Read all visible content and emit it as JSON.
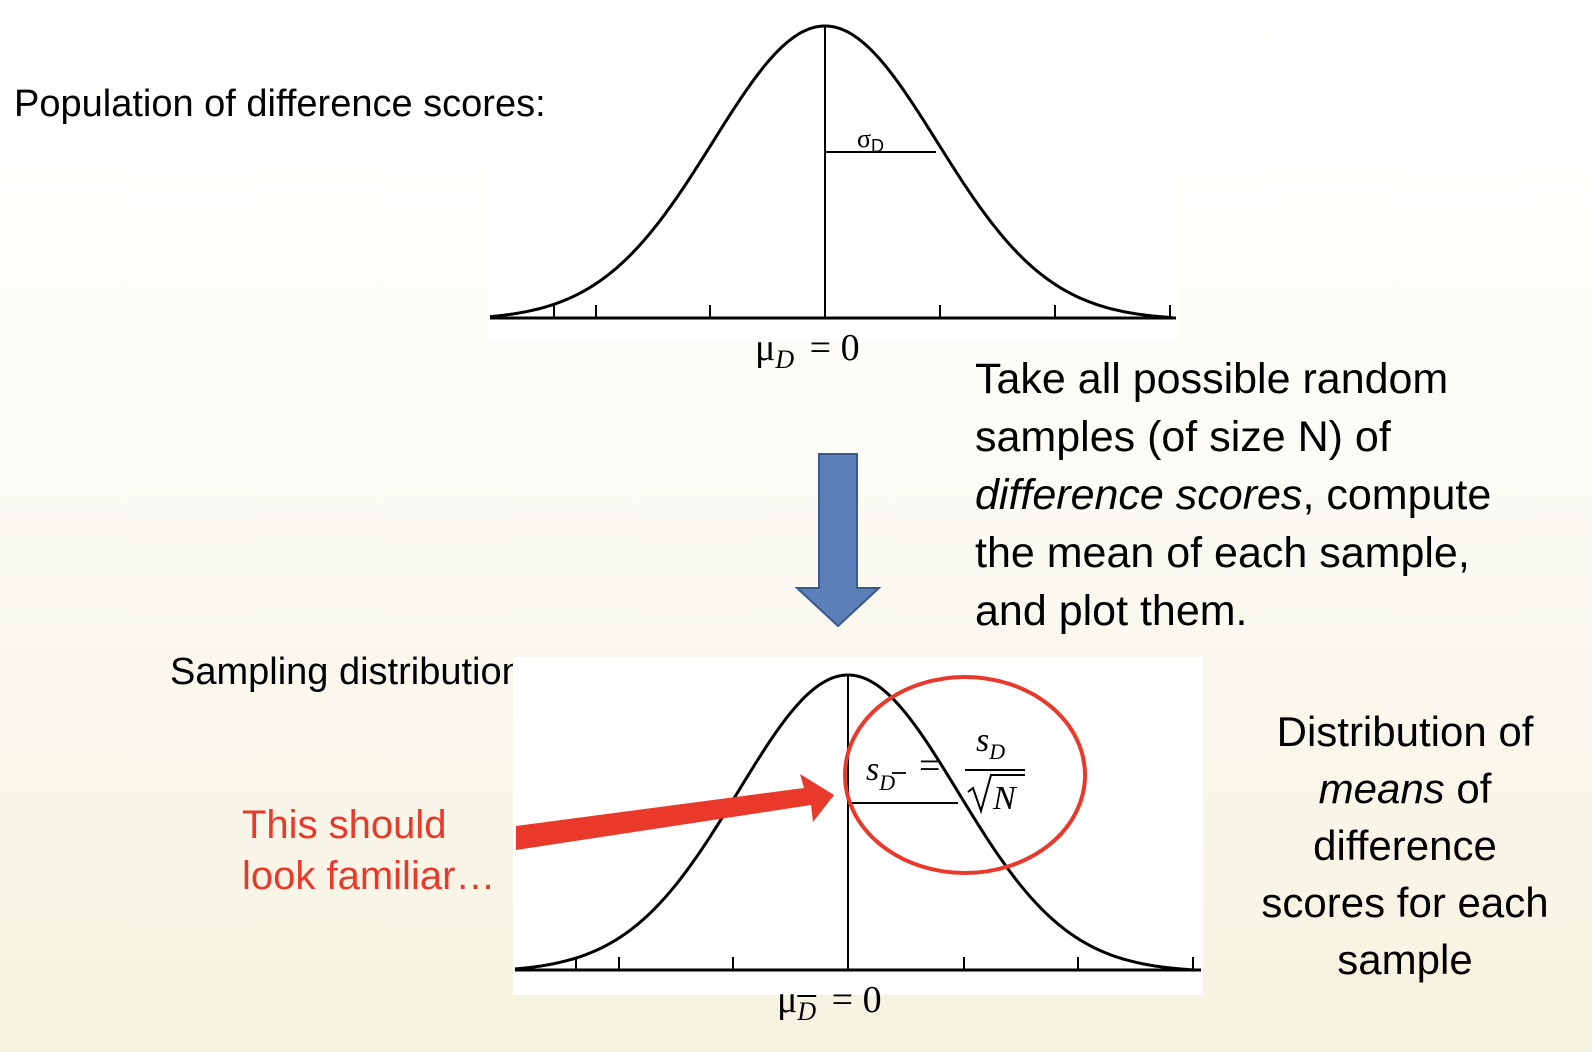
{
  "population": {
    "heading": "Population of difference scores:",
    "sigma_label": "σ",
    "sigma_sub": "D",
    "mu_label": "μ",
    "mu_sub": "D",
    "mu_eq": "= 0"
  },
  "description": {
    "line1": "Take all possible random",
    "line2": "samples (of size N) of",
    "line3_italic": "difference scores",
    "line3_rest": ", compute",
    "line4": "the mean of each sample,",
    "line5": "and plot them."
  },
  "sampling": {
    "heading": "Sampling distribution:",
    "mu_label": "μ",
    "mu_sub": "D",
    "mu_eq": "= 0",
    "formula_lhs": "s",
    "formula_lhs_sub": "D",
    "formula_eq": "=",
    "formula_num": "s",
    "formula_num_sub": "D",
    "formula_den": "N"
  },
  "callout": {
    "line1": "This should",
    "line2": "look familiar…"
  },
  "means_note": {
    "line1": "Distribution of",
    "line2_italic": "means",
    "line2_rest": " of",
    "line3": "difference",
    "line4": "scores for each",
    "line5": "sample"
  },
  "colors": {
    "arrow_down": "#5b7fb8",
    "callout": "#e8392b"
  }
}
